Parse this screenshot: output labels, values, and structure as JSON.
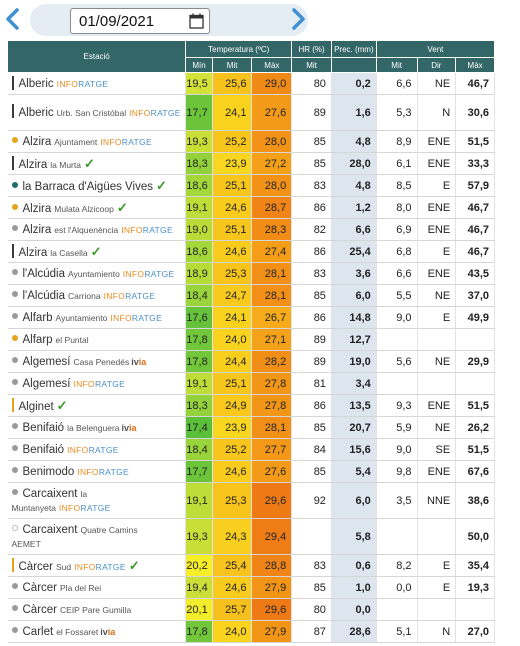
{
  "date_picker": {
    "value": "01/09/2021",
    "prev_icon": "chevron-left-icon",
    "next_icon": "chevron-right-icon",
    "calendar_icon": "calendar-icon"
  },
  "colors": {
    "header_bg": "#336666",
    "precip_bg": "#dde6ef",
    "inforatge_orange": "#ec8a1f",
    "inforatge_blue": "#4a90c8",
    "check_green": "#3a9a2a"
  },
  "table": {
    "headers": {
      "station": "Estació",
      "temperature": "Temperatura (ºC)",
      "humidity": "HR (%)",
      "precip": "Prec. (mm)",
      "wind": "Vent"
    },
    "subheaders": {
      "tmin": "Mín",
      "tmit": "Mit",
      "tmax": "Màx",
      "hr_mit": "Mit",
      "wind_mit": "Mit",
      "wind_dir": "Dir",
      "wind_max": "Màx"
    },
    "rows": [
      {
        "name": "Alberic",
        "sub": "",
        "tag": "INFORATGE",
        "check": false,
        "marker": "bar",
        "marker_color": "#3a3a3a",
        "tmin": "19,5",
        "tmit": "25,6",
        "tmax": "29,0",
        "hr": "80",
        "prec": "0,2",
        "wmit": "6,6",
        "wdir": "NE",
        "wmax": "46,7",
        "c_min": "#d4e33a",
        "c_mit": "#f7c21c",
        "c_max": "#f08a17"
      },
      {
        "name": "Alberic",
        "sub": "Urb. San Cristóbal",
        "tag": "INFORATGE",
        "check": false,
        "marker": "bar",
        "marker_color": "#3a3a3a",
        "tall": true,
        "tmin": "17,7",
        "tmit": "24,1",
        "tmax": "27,6",
        "hr": "89",
        "prec": "1,6",
        "wmit": "5,3",
        "wdir": "N",
        "wmax": "30,6",
        "c_min": "#6cc43a",
        "c_mit": "#f9d21e",
        "c_max": "#f39a18"
      },
      {
        "name": "Alzira",
        "sub": "Ajuntament",
        "tag": "INFORATGE",
        "check": false,
        "marker": "dot",
        "marker_color": "#e5a41a",
        "tmin": "19,3",
        "tmit": "25,2",
        "tmax": "28,0",
        "hr": "85",
        "prec": "4,8",
        "wmit": "8,9",
        "wdir": "ENE",
        "wmax": "51,5",
        "c_min": "#c9df38",
        "c_mit": "#f7c51c",
        "c_max": "#f29217"
      },
      {
        "name": "Alzira",
        "sub": "la Murta",
        "tag": "",
        "check": true,
        "marker": "bar",
        "marker_color": "#3a3a3a",
        "tmin": "18,3",
        "tmit": "23,9",
        "tmax": "27,2",
        "hr": "85",
        "prec": "28,0",
        "wmit": "6,1",
        "wdir": "ENE",
        "wmax": "33,3",
        "c_min": "#93d23a",
        "c_mit": "#f9d61f",
        "c_max": "#f4a119"
      },
      {
        "name": "la Barraca d'Aigües Vives",
        "sub": "",
        "tag": "",
        "check": true,
        "marker": "dot",
        "marker_color": "#1f6d6b",
        "tmin": "18,6",
        "tmit": "25,1",
        "tmax": "28,0",
        "hr": "83",
        "prec": "4,8",
        "wmit": "8,5",
        "wdir": "E",
        "wmax": "57,9",
        "c_min": "#a4d83a",
        "c_mit": "#f7c61c",
        "c_max": "#f29217"
      },
      {
        "name": "Alzira",
        "sub": "Mulata Alzicoop",
        "tag": "",
        "check": true,
        "marker": "dot",
        "marker_color": "#e5a41a",
        "tmin": "19,1",
        "tmit": "24,6",
        "tmax": "28,7",
        "hr": "86",
        "prec": "1,2",
        "wmit": "8,0",
        "wdir": "ENE",
        "wmax": "46,7",
        "c_min": "#bfdd38",
        "c_mit": "#f8cb1d",
        "c_max": "#f08417"
      },
      {
        "name": "Alzira",
        "sub": "est l'Alquenència",
        "tag": "INFORATGE",
        "check": false,
        "marker": "dot",
        "marker_color": "#9a9a9a",
        "tmin": "19,0",
        "tmit": "25,1",
        "tmax": "28,3",
        "hr": "82",
        "prec": "6,6",
        "wmit": "6,9",
        "wdir": "ENE",
        "wmax": "46,7",
        "c_min": "#bbdc38",
        "c_mit": "#f7c61c",
        "c_max": "#f18c17"
      },
      {
        "name": "Alzira",
        "sub": "la Casella",
        "tag": "",
        "check": true,
        "marker": "bar",
        "marker_color": "#3a3a3a",
        "tmin": "18,6",
        "tmit": "24,6",
        "tmax": "27,4",
        "hr": "86",
        "prec": "25,4",
        "wmit": "6,8",
        "wdir": "E",
        "wmax": "46,7",
        "c_min": "#a4d83a",
        "c_mit": "#f8cb1d",
        "c_max": "#f49e18"
      },
      {
        "name": "l'Alcúdia",
        "sub": "Ayuntamiento",
        "tag": "INFORATGE",
        "check": false,
        "marker": "dot",
        "marker_color": "#9a9a9a",
        "tmin": "18,9",
        "tmit": "25,3",
        "tmax": "28,1",
        "hr": "83",
        "prec": "3,6",
        "wmit": "6,6",
        "wdir": "ENE",
        "wmax": "43,5",
        "c_min": "#b4db38",
        "c_mit": "#f7c41c",
        "c_max": "#f18f17"
      },
      {
        "name": "l'Alcúdia",
        "sub": "Carriona",
        "tag": "INFORATGE",
        "check": false,
        "marker": "dot",
        "marker_color": "#9a9a9a",
        "tmin": "18,4",
        "tmit": "24,7",
        "tmax": "28,1",
        "hr": "85",
        "prec": "6,0",
        "wmit": "5,5",
        "wdir": "NE",
        "wmax": "37,0",
        "c_min": "#98d43a",
        "c_mit": "#f8ca1d",
        "c_max": "#f18f17"
      },
      {
        "name": "Alfarb",
        "sub": "Ayuntamiento",
        "tag": "INFORATGE",
        "check": false,
        "marker": "dot",
        "marker_color": "#9a9a9a",
        "tmin": "17,6",
        "tmit": "24,1",
        "tmax": "26,7",
        "hr": "86",
        "prec": "14,8",
        "wmit": "9,0",
        "wdir": "E",
        "wmax": "49,9",
        "c_min": "#66c23a",
        "c_mit": "#f9d21e",
        "c_max": "#f6ac1a"
      },
      {
        "name": "Alfarp",
        "sub": "el Puntal",
        "tag": "",
        "check": false,
        "marker": "dot",
        "marker_color": "#e5a41a",
        "tmin": "17,8",
        "tmit": "24,0",
        "tmax": "27,1",
        "hr": "89",
        "prec": "12,7",
        "wmit": "",
        "wdir": "",
        "wmax": "",
        "c_min": "#72c63a",
        "c_mit": "#f9d31e",
        "c_max": "#f4a219"
      },
      {
        "name": "Algemesí",
        "sub": "Casa Penedés",
        "tag": "IVIA",
        "check": false,
        "marker": "dot",
        "marker_color": "#9a9a9a",
        "tmin": "17,8",
        "tmit": "24,4",
        "tmax": "28,2",
        "hr": "89",
        "prec": "19,0",
        "wmit": "5,6",
        "wdir": "NE",
        "wmax": "29,9",
        "c_min": "#72c63a",
        "c_mit": "#f8ce1d",
        "c_max": "#f18e17"
      },
      {
        "name": "Algemesí",
        "sub": "",
        "tag": "INFORATGE",
        "check": false,
        "marker": "dot",
        "marker_color": "#9a9a9a",
        "tmin": "19,1",
        "tmit": "25,1",
        "tmax": "27,8",
        "hr": "81",
        "prec": "3,4",
        "wmit": "",
        "wdir": "",
        "wmax": "",
        "c_min": "#bfdd38",
        "c_mit": "#f7c61c",
        "c_max": "#f29617"
      },
      {
        "name": "Alginet",
        "sub": "",
        "tag": "",
        "check": true,
        "marker": "bar",
        "marker_color": "#e5a41a",
        "tmin": "18,3",
        "tmit": "24,9",
        "tmax": "27,8",
        "hr": "86",
        "prec": "13,5",
        "wmit": "9,3",
        "wdir": "ENE",
        "wmax": "51,5",
        "c_min": "#93d23a",
        "c_mit": "#f8c81d",
        "c_max": "#f29617"
      },
      {
        "name": "Benifaió",
        "sub": "la Belenguera",
        "tag": "IVIA",
        "check": false,
        "marker": "dot",
        "marker_color": "#9a9a9a",
        "tmin": "17,4",
        "tmit": "23,9",
        "tmax": "28,1",
        "hr": "85",
        "prec": "20,7",
        "wmit": "5,9",
        "wdir": "NE",
        "wmax": "26,2",
        "c_min": "#5cbf3a",
        "c_mit": "#f9d61f",
        "c_max": "#f18f17"
      },
      {
        "name": "Benifaió",
        "sub": "",
        "tag": "INFORATGE",
        "check": false,
        "marker": "dot",
        "marker_color": "#9a9a9a",
        "tmin": "18,4",
        "tmit": "25,2",
        "tmax": "27,7",
        "hr": "84",
        "prec": "15,6",
        "wmit": "9,0",
        "wdir": "SE",
        "wmax": "51,5",
        "c_min": "#98d43a",
        "c_mit": "#f7c51c",
        "c_max": "#f39818"
      },
      {
        "name": "Benimodo",
        "sub": "",
        "tag": "INFORATGE",
        "check": false,
        "marker": "dot",
        "marker_color": "#9a9a9a",
        "tmin": "17,7",
        "tmit": "24,6",
        "tmax": "27,6",
        "hr": "85",
        "prec": "5,4",
        "wmit": "9,8",
        "wdir": "ENE",
        "wmax": "67,6",
        "c_min": "#6cc43a",
        "c_mit": "#f8cb1d",
        "c_max": "#f39a18"
      },
      {
        "name": "Carcaixent",
        "sub": "la Muntanyeta",
        "tag": "INFORATGE",
        "check": false,
        "marker": "dot",
        "marker_color": "#9a9a9a",
        "tall": true,
        "tmin": "19,1",
        "tmit": "25,3",
        "tmax": "29,6",
        "hr": "92",
        "prec": "6,0",
        "wmit": "3,5",
        "wdir": "NNE",
        "wmax": "38,6",
        "c_min": "#bfdd38",
        "c_mit": "#f7c41c",
        "c_max": "#ee7a16"
      },
      {
        "name": "Carcaixent",
        "sub": "Quatre Camins",
        "tag": "AEMET",
        "check": false,
        "marker": "hollow",
        "marker_color": "#bdbdbd",
        "tall": true,
        "tmin": "19,3",
        "tmit": "24,3",
        "tmax": "29,4",
        "hr": "",
        "prec": "5,8",
        "wmit": "",
        "wdir": "",
        "wmax": "50,0",
        "c_min": "#c9df38",
        "c_mit": "#f8cf1e",
        "c_max": "#ef7d16"
      },
      {
        "name": "Càrcer",
        "sub": "Sud",
        "tag": "INFORATGE",
        "check": true,
        "marker": "bar",
        "marker_color": "#e5a41a",
        "tmin": "20,2",
        "tmit": "25,4",
        "tmax": "28,8",
        "hr": "83",
        "prec": "0,6",
        "wmit": "8,2",
        "wdir": "E",
        "wmax": "35,4",
        "c_min": "#f7ee2a",
        "c_mit": "#f7c31c",
        "c_max": "#f08417"
      },
      {
        "name": "Càrcer",
        "sub": "Pla del Rei",
        "tag": "",
        "check": false,
        "marker": "dot",
        "marker_color": "#9a9a9a",
        "tmin": "19,4",
        "tmit": "24,6",
        "tmax": "27,9",
        "hr": "85",
        "prec": "1,0",
        "wmit": "0,0",
        "wdir": "E",
        "wmax": "19,3",
        "c_min": "#ccdf38",
        "c_mit": "#f8cb1d",
        "c_max": "#f29517"
      },
      {
        "name": "Càrcer",
        "sub": "CEIP Pare Gumilla",
        "tag": "",
        "check": false,
        "marker": "dot",
        "marker_color": "#9a9a9a",
        "tmin": "20,1",
        "tmit": "25,7",
        "tmax": "29,6",
        "hr": "80",
        "prec": "0,0",
        "wmit": "",
        "wdir": "",
        "wmax": "",
        "c_min": "#f2ec2a",
        "c_mit": "#f6c01c",
        "c_max": "#ee7a16"
      },
      {
        "name": "Carlet",
        "sub": "el Fossaret",
        "tag": "IVIA",
        "check": false,
        "marker": "dot",
        "marker_color": "#9a9a9a",
        "tmin": "17,8",
        "tmit": "24,0",
        "tmax": "27,9",
        "hr": "87",
        "prec": "28,6",
        "wmit": "5,1",
        "wdir": "N",
        "wmax": "27,0",
        "c_min": "#72c63a",
        "c_mit": "#f9d31e",
        "c_max": "#f29517"
      }
    ]
  }
}
